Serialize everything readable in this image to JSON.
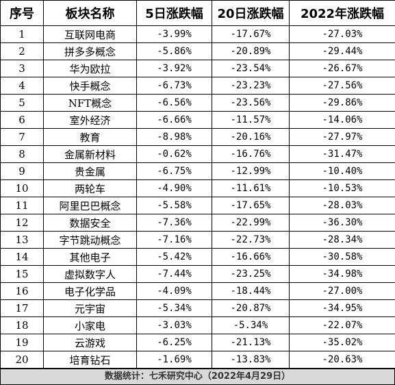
{
  "headers": [
    "序号",
    "板块名称",
    "5日涨跌幅",
    "20日涨跌幅",
    "2022年涨跌幅"
  ],
  "rows": [
    [
      "1",
      "互联网电商",
      "-3.99%",
      "-17.67%",
      "-27.03%"
    ],
    [
      "2",
      "拼多多概念",
      "-5.86%",
      "-20.89%",
      "-29.44%"
    ],
    [
      "3",
      "华为欧拉",
      "-3.92%",
      "-23.54%",
      "-26.67%"
    ],
    [
      "4",
      "快手概念",
      "-6.73%",
      "-23.23%",
      "-27.56%"
    ],
    [
      "5",
      "NFT概念",
      "-6.56%",
      "-23.56%",
      "-29.86%"
    ],
    [
      "6",
      "室外经济",
      "-6.66%",
      "-11.57%",
      "-14.06%"
    ],
    [
      "7",
      "教育",
      "-8.98%",
      "-20.16%",
      "-27.97%"
    ],
    [
      "8",
      "金属新材料",
      "-0.62%",
      "-16.76%",
      "-31.47%"
    ],
    [
      "9",
      "贵金属",
      "-6.75%",
      "-12.99%",
      "-10.40%"
    ],
    [
      "10",
      "两轮车",
      "-4.90%",
      "-11.61%",
      "-10.53%"
    ],
    [
      "11",
      "阿里巴巴概念",
      "-5.58%",
      "-17.65%",
      "-28.03%"
    ],
    [
      "12",
      "数据安全",
      "-7.36%",
      "-22.99%",
      "-36.30%"
    ],
    [
      "13",
      "字节跳动概念",
      "-7.16%",
      "-22.73%",
      "-28.34%"
    ],
    [
      "14",
      "其他电子",
      "-5.42%",
      "-16.66%",
      "-30.58%"
    ],
    [
      "15",
      "虚拟数字人",
      "-7.44%",
      "-23.25%",
      "-34.98%"
    ],
    [
      "16",
      "电子化学品",
      "-4.09%",
      "-18.44%",
      "-27.00%"
    ],
    [
      "17",
      "元宇宙",
      "-5.34%",
      "-20.87%",
      "-34.95%"
    ],
    [
      "18",
      "小家电",
      "-3.03%",
      "-5.34%",
      "-22.07%"
    ],
    [
      "19",
      "云游戏",
      "-6.25%",
      "-21.13%",
      "-35.02%"
    ],
    [
      "20",
      "培育钻石",
      "-1.69%",
      "-13.83%",
      "-20.63%"
    ]
  ],
  "footer": "数据统计：七禾研究中心（2022年4月29日）"
}
